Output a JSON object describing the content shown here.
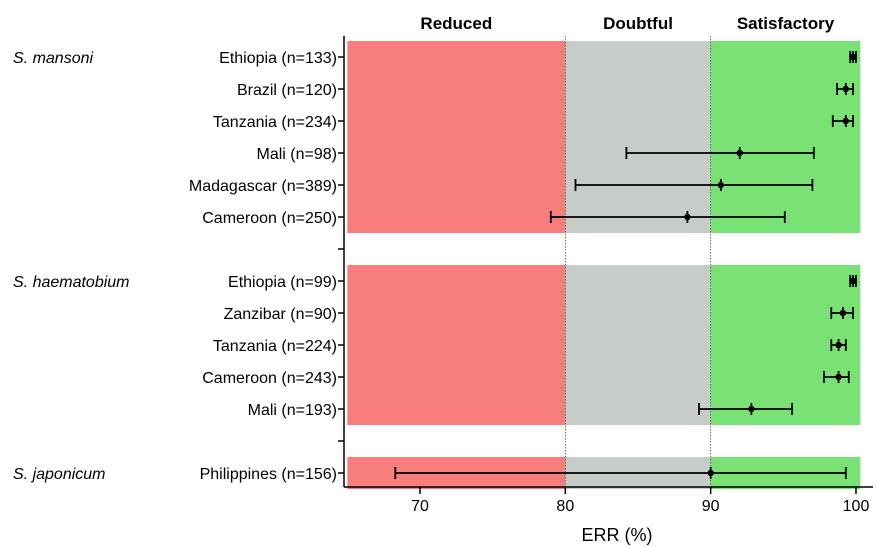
{
  "chart_data": {
    "type": "scatter",
    "subtype": "forest-plot-horizontal-error-bars",
    "title": "",
    "xlabel": "ERR (%)",
    "ylabel": "",
    "xlim": [
      65,
      100.5
    ],
    "xticks": [
      70,
      80,
      90,
      100
    ],
    "reference_lines": [
      80,
      90
    ],
    "bands": [
      {
        "label": "Reduced",
        "from": 65,
        "to": 80,
        "color": "#f87e7e"
      },
      {
        "label": "Doubtful",
        "from": 80,
        "to": 90,
        "color": "#c6ccc7"
      },
      {
        "label": "Satisfactory",
        "from": 90,
        "to": 100.3,
        "color": "#7ae274"
      }
    ],
    "groups": [
      {
        "name": "S. mansoni",
        "rows": [
          {
            "label": "Ethiopia (n=133)",
            "value": 99.8,
            "lo": 99.6,
            "hi": 100.0
          },
          {
            "label": "Brazil (n=120)",
            "value": 99.3,
            "lo": 98.7,
            "hi": 99.8
          },
          {
            "label": "Tanzania (n=234)",
            "value": 99.3,
            "lo": 98.4,
            "hi": 99.8
          },
          {
            "label": "Mali (n=98)",
            "value": 92.0,
            "lo": 84.2,
            "hi": 97.1
          },
          {
            "label": "Madagascar (n=389)",
            "value": 90.7,
            "lo": 80.7,
            "hi": 97.0
          },
          {
            "label": "Cameroon (n=250)",
            "value": 88.4,
            "lo": 79.0,
            "hi": 95.1
          }
        ]
      },
      {
        "name": "S. haematobium",
        "rows": [
          {
            "label": "Ethiopia (n=99)",
            "value": 99.8,
            "lo": 99.6,
            "hi": 100.0
          },
          {
            "label": "Zanzibar (n=90)",
            "value": 99.1,
            "lo": 98.3,
            "hi": 99.8
          },
          {
            "label": "Tanzania (n=224)",
            "value": 98.8,
            "lo": 98.3,
            "hi": 99.3
          },
          {
            "label": "Cameroon (n=243)",
            "value": 98.8,
            "lo": 97.8,
            "hi": 99.5
          },
          {
            "label": "Mali (n=193)",
            "value": 92.8,
            "lo": 89.2,
            "hi": 95.6
          }
        ]
      },
      {
        "name": "S. japonicum",
        "rows": [
          {
            "label": "Philippines (n=156)",
            "value": 90.0,
            "lo": 68.3,
            "hi": 99.3
          }
        ]
      }
    ],
    "legend": "none"
  }
}
